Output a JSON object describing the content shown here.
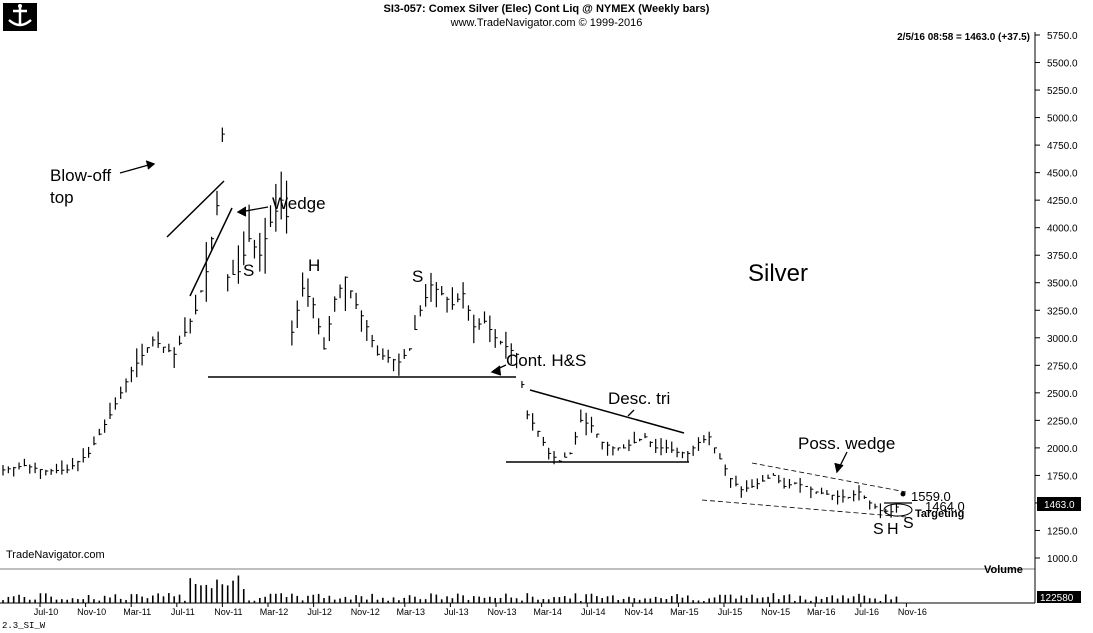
{
  "header": {
    "title": "SI3-057:  Comex Silver (Elec) Cont Liq @ NYMEX  (Weekly bars)",
    "subtitle": "www.TradeNavigator.com © 1999-2016"
  },
  "quote_line": "2/5/16 08:58 = 1463.0 (+37.5)",
  "brand": "TradeNavigator.com",
  "footer_code": "2.3_SI_W",
  "volume_label": "Volume",
  "volume_axis_value": "122580",
  "last_price_box": "1463.0",
  "colors": {
    "bars": "#000000",
    "background": "#ffffff",
    "price_box": "#000000"
  },
  "chart_data": {
    "type": "ohlc",
    "title": "SI3-057:  Comex Silver (Elec) Cont Liq @ NYMEX  (Weekly bars)",
    "watermark": "Silver",
    "ylim": [
      1000,
      5900
    ],
    "y_ticks": [
      "1000.0",
      "1250.0",
      "1500.0",
      "1750.0",
      "2000.0",
      "2250.0",
      "2500.0",
      "2750.0",
      "3000.0",
      "3250.0",
      "3500.0",
      "3750.0",
      "4000.0",
      "4250.0",
      "4500.0",
      "4750.0",
      "5000.0",
      "5250.0",
      "5500.0",
      "5750.0"
    ],
    "x_ticks": [
      "Jul-10",
      "Nov-10",
      "Mar-11",
      "Jul-11",
      "Nov-11",
      "Mar-12",
      "Jul-12",
      "Nov-12",
      "Mar-13",
      "Jul-13",
      "Nov-13",
      "Mar-14",
      "Jul-14",
      "Nov-14",
      "Mar-15",
      "Jul-15",
      "Nov-15",
      "Mar-16",
      "Jul-16",
      "Nov-16"
    ],
    "price_path": [
      [
        0,
        1800
      ],
      [
        4,
        1840
      ],
      [
        8,
        1790
      ],
      [
        12,
        1800
      ],
      [
        16,
        1950
      ],
      [
        20,
        2300
      ],
      [
        24,
        2700
      ],
      [
        28,
        2980
      ],
      [
        32,
        2850
      ],
      [
        36,
        3250
      ],
      [
        38,
        3600
      ],
      [
        40,
        4200
      ],
      [
        41,
        4850
      ],
      [
        42,
        3550
      ],
      [
        44,
        3600
      ],
      [
        46,
        3900
      ],
      [
        48,
        3750
      ],
      [
        50,
        4050
      ],
      [
        52,
        4250
      ],
      [
        53,
        4100
      ],
      [
        54,
        3050
      ],
      [
        56,
        3450
      ],
      [
        58,
        3300
      ],
      [
        60,
        2900
      ],
      [
        62,
        3350
      ],
      [
        64,
        3550
      ],
      [
        66,
        3300
      ],
      [
        68,
        3100
      ],
      [
        70,
        2850
      ],
      [
        72,
        2820
      ],
      [
        74,
        2780
      ],
      [
        76,
        2900
      ],
      [
        78,
        3250
      ],
      [
        80,
        3480
      ],
      [
        82,
        3400
      ],
      [
        84,
        3300
      ],
      [
        86,
        3400
      ],
      [
        88,
        3100
      ],
      [
        90,
        3150
      ],
      [
        92,
        3000
      ],
      [
        94,
        2920
      ],
      [
        96,
        2850
      ],
      [
        98,
        2300
      ],
      [
        100,
        2150
      ],
      [
        102,
        1950
      ],
      [
        104,
        1880
      ],
      [
        106,
        1950
      ],
      [
        108,
        2250
      ],
      [
        110,
        2200
      ],
      [
        112,
        2050
      ],
      [
        114,
        2000
      ],
      [
        116,
        2000
      ],
      [
        118,
        2050
      ],
      [
        120,
        2100
      ],
      [
        122,
        2000
      ],
      [
        124,
        2000
      ],
      [
        126,
        1960
      ],
      [
        128,
        1950
      ],
      [
        130,
        2050
      ],
      [
        132,
        2100
      ],
      [
        134,
        1900
      ],
      [
        136,
        1720
      ],
      [
        138,
        1620
      ],
      [
        140,
        1650
      ],
      [
        142,
        1700
      ],
      [
        144,
        1750
      ],
      [
        146,
        1650
      ],
      [
        148,
        1680
      ],
      [
        150,
        1650
      ],
      [
        152,
        1600
      ],
      [
        154,
        1580
      ],
      [
        156,
        1560
      ],
      [
        158,
        1550
      ],
      [
        160,
        1600
      ],
      [
        162,
        1500
      ],
      [
        164,
        1430
      ],
      [
        166,
        1420
      ],
      [
        167,
        1463
      ]
    ],
    "volume_note": "weekly volume histogram, peak 122580 near Mar-11",
    "annotations": [
      {
        "text": "Blow-off",
        "kind": "label"
      },
      {
        "text": "top",
        "kind": "label"
      },
      {
        "text": "Wedge",
        "kind": "pattern"
      },
      {
        "text": "S",
        "kind": "H&S"
      },
      {
        "text": "H",
        "kind": "H&S"
      },
      {
        "text": "S",
        "kind": "H&S"
      },
      {
        "text": "Cont. H&S",
        "kind": "pattern"
      },
      {
        "text": "Desc. tri",
        "kind": "pattern"
      },
      {
        "text": "Poss. wedge",
        "kind": "pattern"
      },
      {
        "text": "1559.0",
        "kind": "level"
      },
      {
        "text": "1464.0",
        "kind": "level"
      },
      {
        "text": "Targeting",
        "kind": "label"
      },
      {
        "text": "S",
        "kind": "H&S"
      },
      {
        "text": "H",
        "kind": "H&S"
      },
      {
        "text": "S",
        "kind": "H&S"
      }
    ]
  }
}
